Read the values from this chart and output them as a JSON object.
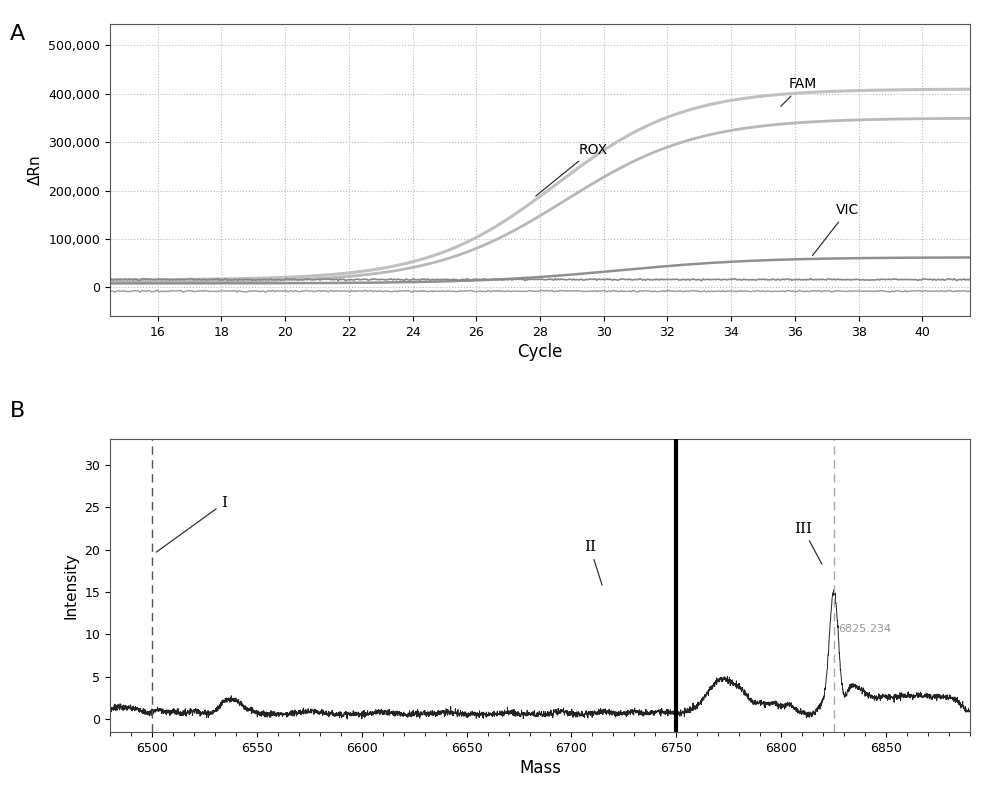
{
  "panel_A": {
    "title_label": "A",
    "xlabel": "Cycle",
    "ylabel": "ΔRn",
    "xlim": [
      14.5,
      41.5
    ],
    "ylim": [
      -60000,
      545000
    ],
    "yticks": [
      0,
      100000,
      200000,
      300000,
      400000,
      500000
    ],
    "ytick_labels": [
      "0",
      "100,000",
      "200,000",
      "300,000",
      "400,000",
      "500,000"
    ],
    "xticks": [
      16,
      18,
      20,
      22,
      24,
      26,
      28,
      30,
      32,
      34,
      36,
      38,
      40
    ],
    "grid_color": "#bbbbbb",
    "bg_color": "#ffffff"
  },
  "panel_B": {
    "title_label": "B",
    "xlabel": "Mass",
    "ylabel": "Intensity",
    "xlim": [
      6480,
      6890
    ],
    "ylim": [
      -1.5,
      33
    ],
    "yticks": [
      0,
      5,
      10,
      15,
      20,
      25,
      30
    ],
    "xticks": [
      6500,
      6550,
      6600,
      6650,
      6700,
      6750,
      6800,
      6850
    ],
    "vline_solid": 6750,
    "vline_dashed1": 6500,
    "vline_dashed2": 6825.234,
    "peak_label": "6825.234",
    "bg_color": "#ffffff",
    "line_color": "#222222"
  }
}
